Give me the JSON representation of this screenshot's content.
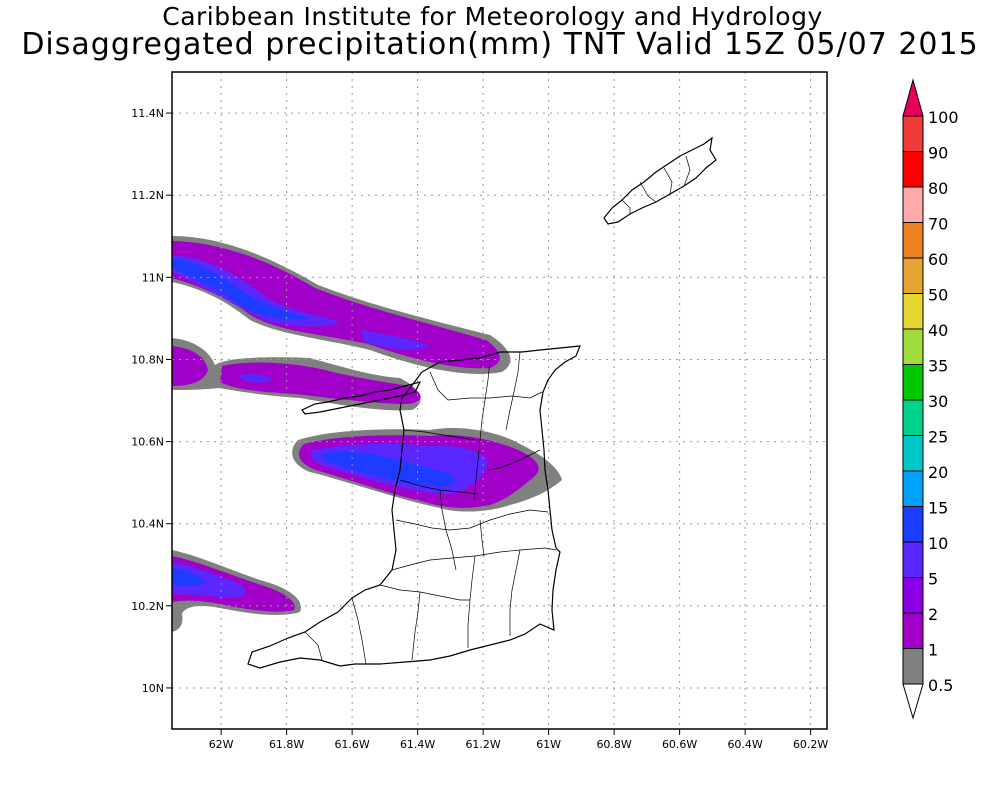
{
  "title": "Caribbean Institute for Meteorology and Hydrology",
  "subtitle": "Disaggregated precipitation(mm) TNT Valid 15Z 05/07 2015",
  "map": {
    "lat_labels": [
      "10N",
      "10.2N",
      "10.4N",
      "10.6N",
      "10.8N",
      "11N",
      "11.2N",
      "11.4N"
    ],
    "lon_labels": [
      "62W",
      "61.8W",
      "61.6W",
      "61.4W",
      "61.2W",
      "61W",
      "60.8W",
      "60.6W",
      "60.4W",
      "60.2W"
    ],
    "lat_range": [
      9.9,
      11.5
    ],
    "lon_range": [
      -62.15,
      -60.15
    ],
    "grid": true,
    "grid_style": "dotted"
  },
  "legend": {
    "labels": [
      "100",
      "90",
      "80",
      "70",
      "60",
      "50",
      "40",
      "35",
      "30",
      "25",
      "20",
      "15",
      "10",
      "5",
      "2",
      "1",
      "0.5"
    ],
    "colors": [
      "#e6005c",
      "#f03a3a",
      "#ff0000",
      "#ffaaaa",
      "#ee7f22",
      "#e6a532",
      "#e5d530",
      "#a0dc3c",
      "#00c800",
      "#00d28c",
      "#00c8c8",
      "#00a0ff",
      "#1e3cff",
      "#5a28ff",
      "#8c00e6",
      "#a000c8",
      "#808080",
      "#ffffff"
    ]
  }
}
